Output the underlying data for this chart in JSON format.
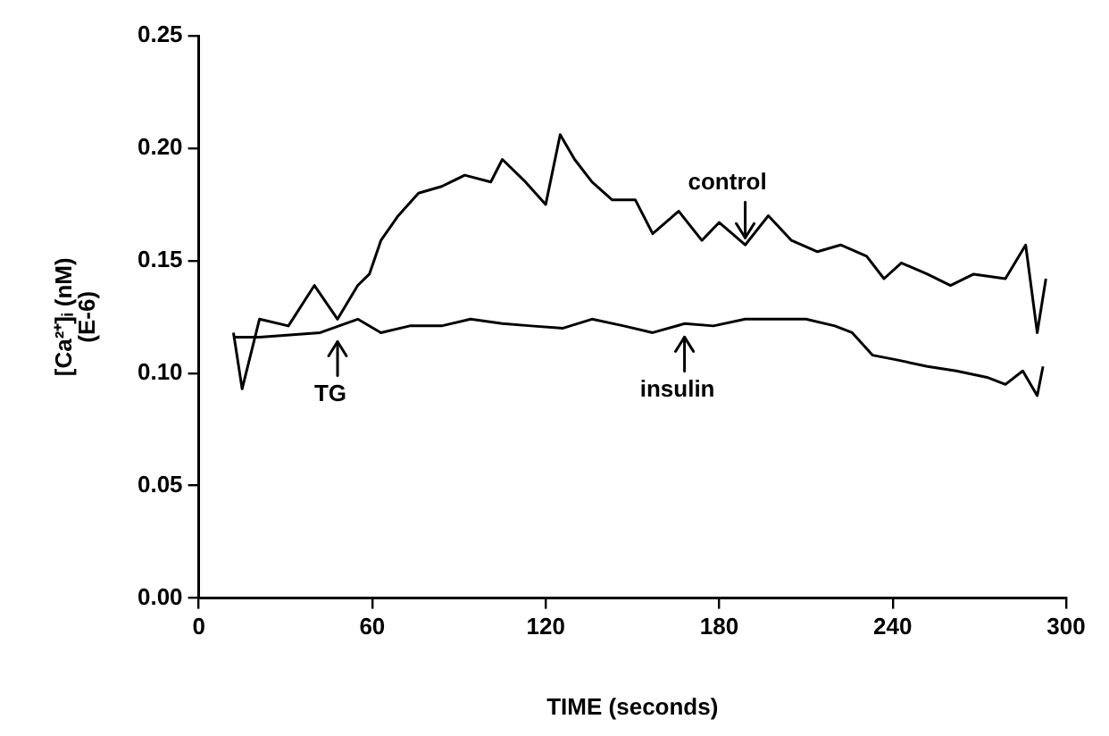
{
  "chart_data": {
    "type": "line",
    "xlabel": "TIME (seconds)",
    "ylabel": "[Ca²⁺]ᵢ (nM)\n(E-6)",
    "xlim": [
      0,
      300
    ],
    "xticks": [
      0,
      60,
      120,
      180,
      240,
      300
    ],
    "ylim": [
      0,
      0.25
    ],
    "yticks": [
      {
        "value": 0,
        "label": "0.00"
      },
      0.05,
      {
        "value": 0.1,
        "label": "0.10"
      },
      0.15,
      {
        "value": 0.2,
        "label": "0.20"
      },
      0.25
    ],
    "grid": false,
    "legend": false,
    "marker": "none",
    "line_style": "solid",
    "annotations": [
      {
        "text": "TG",
        "x": 48,
        "y": 0.118
      },
      {
        "text": "control",
        "x": 189,
        "y": 0.157
      },
      {
        "text": "insulin",
        "x": 168,
        "y": 0.12
      }
    ],
    "series": [
      {
        "color": "#000000",
        "x": [
          12,
          15,
          21,
          31,
          40,
          48,
          55,
          59,
          63,
          69,
          76,
          84,
          92,
          101,
          105,
          113,
          120,
          125,
          130,
          136,
          143,
          151,
          157,
          166,
          174,
          180,
          189,
          197,
          205,
          214,
          222,
          231,
          237,
          243,
          252,
          260,
          268,
          279,
          286,
          290,
          293
        ],
        "values": [
          0.118,
          0.093,
          0.124,
          0.121,
          0.139,
          0.124,
          0.139,
          0.144,
          0.159,
          0.17,
          0.18,
          0.183,
          0.188,
          0.185,
          0.195,
          0.185,
          0.175,
          0.206,
          0.195,
          0.185,
          0.177,
          0.177,
          0.162,
          0.172,
          0.159,
          0.167,
          0.157,
          0.17,
          0.159,
          0.154,
          0.157,
          0.152,
          0.142,
          0.149,
          0.144,
          0.139,
          0.144,
          0.142,
          0.157,
          0.118,
          0.142
        ]
      },
      {
        "color": "#000000",
        "x": [
          12,
          21,
          42,
          55,
          63,
          73,
          84,
          94,
          105,
          115,
          126,
          136,
          147,
          157,
          168,
          178,
          189,
          199,
          210,
          220,
          226,
          233,
          241,
          252,
          262,
          273,
          279,
          285,
          290,
          292
        ],
        "values": [
          0.116,
          0.116,
          0.118,
          0.124,
          0.118,
          0.121,
          0.121,
          0.124,
          0.122,
          0.121,
          0.12,
          0.124,
          0.121,
          0.118,
          0.122,
          0.121,
          0.124,
          0.124,
          0.124,
          0.121,
          0.118,
          0.108,
          0.106,
          0.103,
          0.101,
          0.098,
          0.095,
          0.101,
          0.09,
          0.103
        ]
      }
    ]
  }
}
